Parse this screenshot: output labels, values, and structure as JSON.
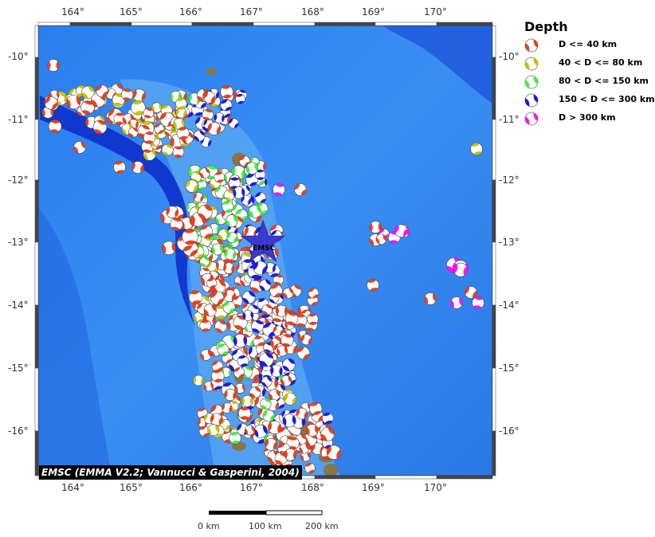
{
  "map": {
    "longitude_labels": [
      "164°",
      "165°",
      "166°",
      "167°",
      "168°",
      "169°",
      "170°"
    ],
    "latitude_labels": [
      "-10°",
      "-11°",
      "-12°",
      "-13°",
      "-14°",
      "-15°",
      "-16°"
    ],
    "station_label": "EMSC",
    "credit": "EMSC (EMMA V2.2; Vannucci & Gasperini, 2004)"
  },
  "legend": {
    "title": "Depth",
    "items": [
      {
        "label": "D <= 40 km",
        "color": "#e8421c"
      },
      {
        "label": "40 < D <= 80 km",
        "color": "#c8c400"
      },
      {
        "label": "80 < D <= 150 km",
        "color": "#3cf23c"
      },
      {
        "label": "150 < D <= 300 km",
        "color": "#1c1ce0"
      },
      {
        "label": "D > 300 km",
        "color": "#ff10ff"
      }
    ]
  },
  "scale_bar": {
    "labels": [
      "0 km",
      "100 km",
      "200 km"
    ]
  },
  "colors": {
    "ocean": "#1f6ee8",
    "trench": "#0a2ac8",
    "land": "#8a7448",
    "star": "#3a3ad0"
  }
}
